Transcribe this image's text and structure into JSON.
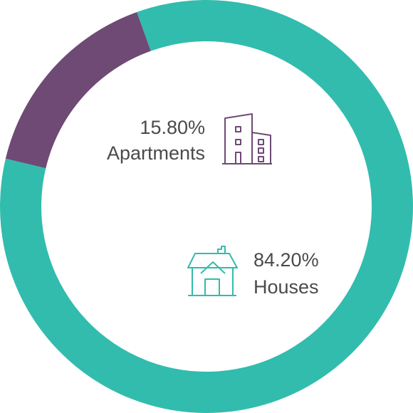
{
  "chart_data": {
    "type": "pie",
    "variant": "donut",
    "categories": [
      "Houses",
      "Apartments"
    ],
    "values": [
      84.2,
      15.8
    ],
    "value_labels": [
      "84.20%",
      "15.80%"
    ],
    "colors": [
      "#32bcad",
      "#6e4a75"
    ],
    "icons": [
      "house-icon",
      "apartment-building-icon"
    ],
    "title": "",
    "legend": "none"
  }
}
